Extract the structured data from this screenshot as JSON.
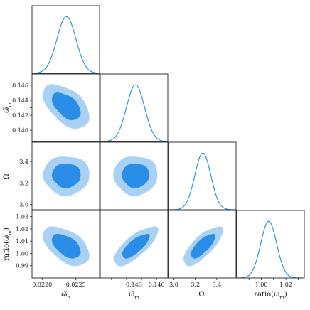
{
  "chart_data": {
    "type": "corner",
    "title": "",
    "colors": {
      "curve": "#1f8de8",
      "outer_contour": "#a8d1f5",
      "inner_contour": "#2a8ee8",
      "frame": "#222222"
    },
    "parameters": [
      {
        "key": "ob",
        "label": "ω̃_b",
        "label_main": "ω̃",
        "label_sub": "b",
        "range": [
          0.02185,
          0.02285
        ],
        "ticks": [
          0.022,
          0.0225
        ],
        "tick_labels": [
          "0.0220",
          "0.0225"
        ],
        "mean": 0.02236,
        "sigma": 0.00014
      },
      {
        "key": "om",
        "label": "ω̃_m",
        "label_main": "ω̃",
        "label_sub": "m",
        "range": [
          0.1385,
          0.1475
        ],
        "ticks": [
          0.14,
          0.142,
          0.143,
          0.144,
          0.146
        ],
        "tick_labels_x": [
          "",
          "",
          "0.143",
          "",
          "0.146"
        ],
        "tick_labels_y": [
          "0.140",
          "0.142",
          "",
          "0.144",
          "0.146"
        ],
        "mean": 0.1432,
        "sigma": 0.0012
      },
      {
        "key": "ol",
        "label": "Ω_l",
        "label_main": "Ω",
        "label_sub": "l",
        "range": [
          2.95,
          3.58
        ],
        "ticks": [
          3.0,
          3.2,
          3.4
        ],
        "tick_labels": [
          "3.0",
          "3.2",
          "3.4"
        ],
        "mean": 3.27,
        "sigma": 0.075
      },
      {
        "key": "ratio",
        "label": "ratio(ω_m)",
        "label_main": "ratio(ω",
        "label_sub": "m",
        "label_tail": ")",
        "range": [
          0.98,
          1.035
        ],
        "ticks": [
          0.99,
          1.0,
          1.01,
          1.02,
          1.03
        ],
        "tick_labels_x": [
          "",
          "1.00",
          "",
          "1.02",
          ""
        ],
        "tick_labels_y": [
          "0.99",
          "1.00",
          "1.01",
          "1.02",
          "1.03"
        ],
        "mean": 1.006,
        "sigma": 0.0065
      }
    ],
    "correlations": {
      "om|ob": -0.5,
      "ol|ob": 0.0,
      "ol|om": 0.0,
      "ratio|ob": -0.5,
      "ratio|om": 0.75,
      "ratio|ol": 0.75
    },
    "contour_levels": [
      "68%",
      "95%"
    ],
    "grid": false,
    "legend": "none"
  }
}
